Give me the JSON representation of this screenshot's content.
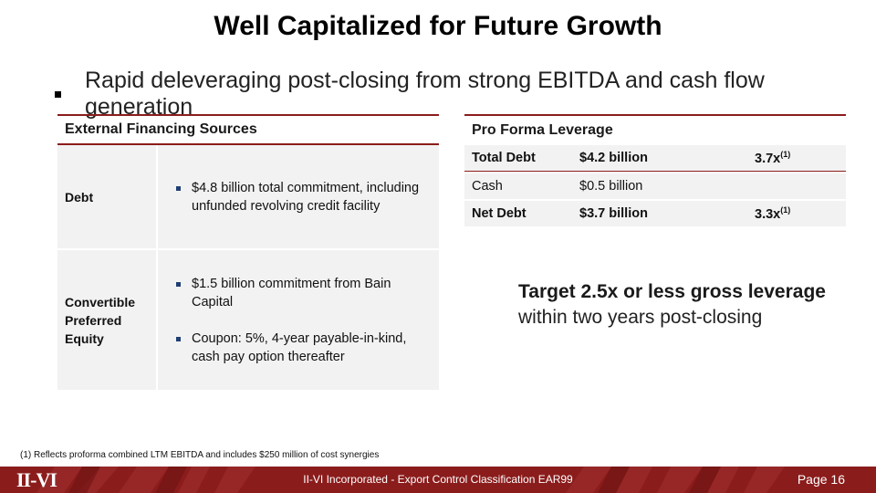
{
  "title": "Well Capitalized for Future Growth",
  "bullet": "Rapid deleveraging post-closing from strong EBITDA and cash flow generation",
  "external_financing": {
    "header": "External Financing Sources",
    "rows": [
      {
        "label": "Debt",
        "items": [
          "$4.8 billion total commitment, including unfunded revolving credit facility"
        ]
      },
      {
        "label": "Convertible Preferred Equity",
        "items": [
          "$1.5 billion commitment from Bain Capital",
          "Coupon: 5%, 4-year payable-in-kind, cash pay option thereafter"
        ]
      }
    ]
  },
  "pro_forma": {
    "header": "Pro Forma Leverage",
    "rows": [
      {
        "label": "Total Debt",
        "amount": "$4.2 billion",
        "ratio": "3.7x",
        "sup": "(1)"
      },
      {
        "label": "Cash",
        "amount": "$0.5 billion",
        "ratio": "",
        "sup": ""
      },
      {
        "label": "Net Debt",
        "amount": "$3.7 billion",
        "ratio": "3.3x",
        "sup": "(1)"
      }
    ]
  },
  "target": {
    "bold": "Target 2.5x or less gross leverage",
    "normal": "within two years post-closing"
  },
  "footnote": "(1) Reflects proforma combined LTM EBITDA and includes $250 million of cost synergies",
  "footer": {
    "logo": "II-VI",
    "text": "II-VI Incorporated - Export Control Classification EAR99",
    "page": "Page 16"
  },
  "colors": {
    "accent": "#8b1c1c",
    "table_bg": "#f2f2f2",
    "bullet_blue": "#1f3f73"
  }
}
